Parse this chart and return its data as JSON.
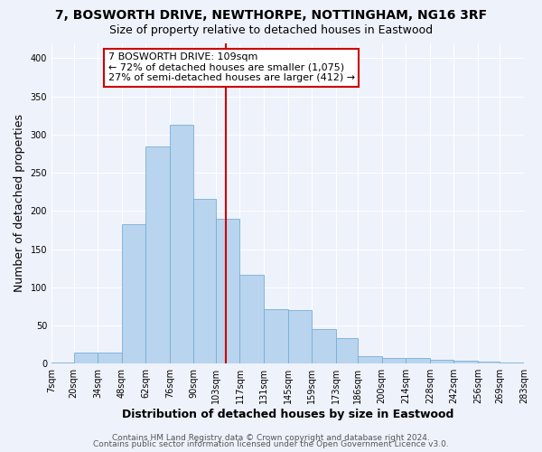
{
  "title": "7, BOSWORTH DRIVE, NEWTHORPE, NOTTINGHAM, NG16 3RF",
  "subtitle": "Size of property relative to detached houses in Eastwood",
  "xlabel": "Distribution of detached houses by size in Eastwood",
  "ylabel": "Number of detached properties",
  "bar_color": "#b8d4ee",
  "bar_edge_color": "#7aaed4",
  "background_color": "#eef2fb",
  "grid_color": "#ffffff",
  "vline_x": 109,
  "vline_color": "#cc0000",
  "annotation_title": "7 BOSWORTH DRIVE: 109sqm",
  "annotation_line1": "← 72% of detached houses are smaller (1,075)",
  "annotation_line2": "27% of semi-detached houses are larger (412) →",
  "annotation_box_color": "#ffffff",
  "annotation_box_edge": "#cc0000",
  "bin_edges": [
    7,
    20,
    34,
    48,
    62,
    76,
    90,
    103,
    117,
    131,
    145,
    159,
    173,
    186,
    200,
    214,
    228,
    242,
    256,
    269,
    283
  ],
  "bar_heights": [
    2,
    15,
    15,
    183,
    285,
    313,
    216,
    190,
    116,
    71,
    70,
    45,
    33,
    10,
    7,
    7,
    5,
    4,
    3,
    2
  ],
  "tick_labels": [
    "7sqm",
    "20sqm",
    "34sqm",
    "48sqm",
    "62sqm",
    "76sqm",
    "90sqm",
    "103sqm",
    "117sqm",
    "131sqm",
    "145sqm",
    "159sqm",
    "173sqm",
    "186sqm",
    "200sqm",
    "214sqm",
    "228sqm",
    "242sqm",
    "256sqm",
    "269sqm",
    "283sqm"
  ],
  "ylim": [
    0,
    420
  ],
  "yticks": [
    0,
    50,
    100,
    150,
    200,
    250,
    300,
    350,
    400
  ],
  "footer1": "Contains HM Land Registry data © Crown copyright and database right 2024.",
  "footer2": "Contains public sector information licensed under the Open Government Licence v3.0.",
  "title_fontsize": 10,
  "subtitle_fontsize": 9,
  "axis_label_fontsize": 9,
  "tick_fontsize": 7,
  "footer_fontsize": 6.5
}
